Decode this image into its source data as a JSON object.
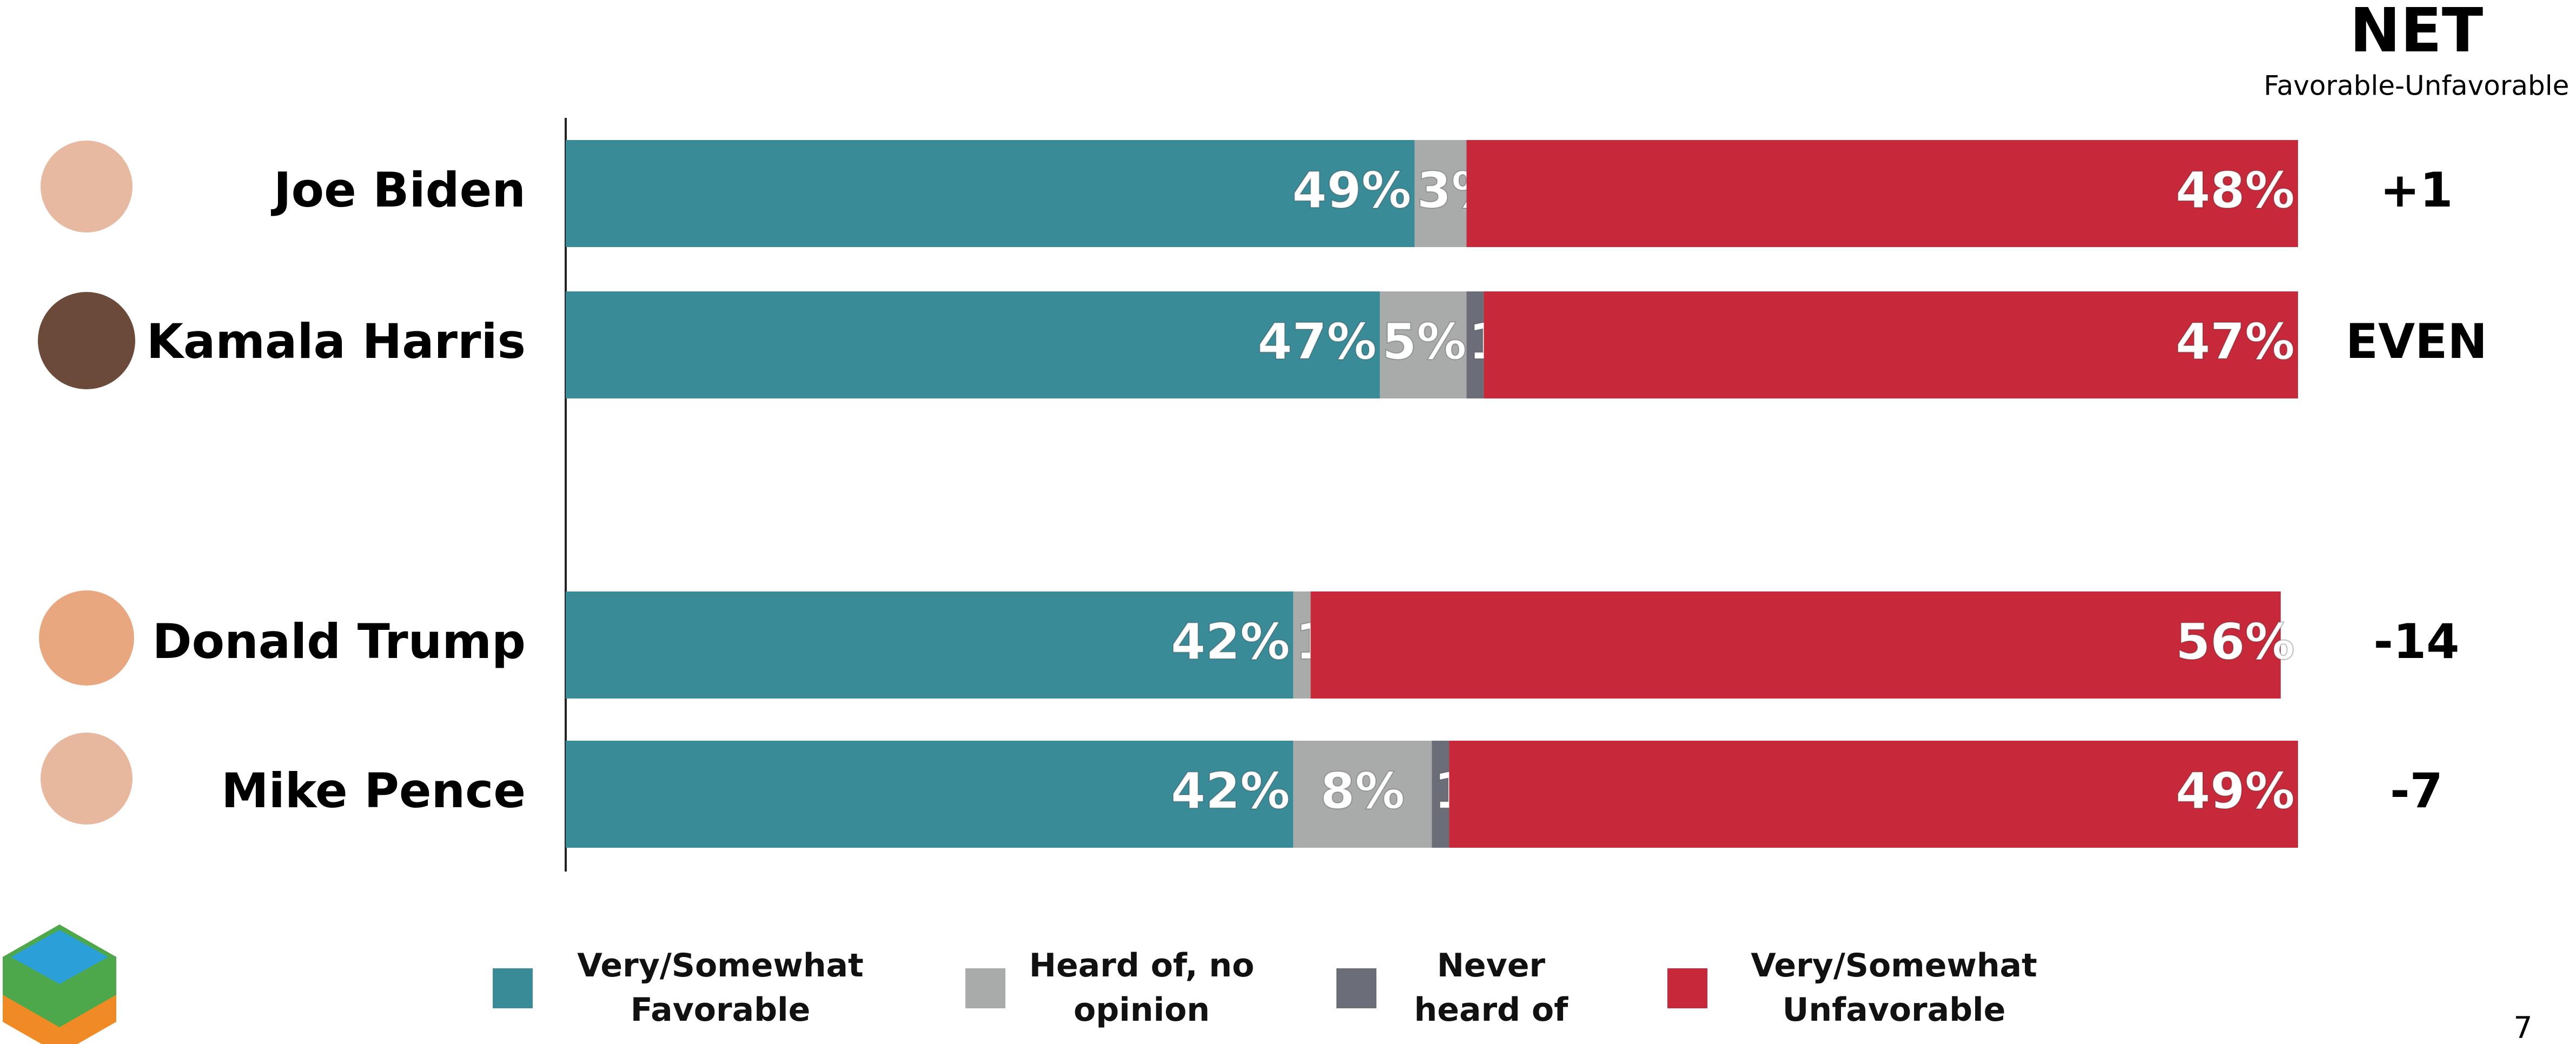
{
  "chart_data": {
    "type": "bar",
    "orientation": "horizontal",
    "stacked": true,
    "categories": [
      "Joe Biden",
      "Kamala Harris",
      "Donald Trump",
      "Mike Pence"
    ],
    "xlim": [
      0,
      100
    ],
    "series": [
      {
        "name": "Very/Somewhat Favorable",
        "color": "#3a8b98",
        "values": [
          49,
          47,
          42,
          42
        ],
        "value_labels": [
          "49%",
          "47%",
          "42%",
          "42%"
        ]
      },
      {
        "name": "Heard of, no opinion",
        "color": "#a9abab",
        "values": [
          3,
          5,
          1,
          8
        ],
        "value_labels": [
          "3%",
          "5%",
          "1%",
          "8%"
        ]
      },
      {
        "name": "Never heard of",
        "color": "#6b6e78",
        "values": [
          null,
          1,
          null,
          1
        ],
        "value_labels": [
          null,
          "1%",
          null,
          "1%"
        ]
      },
      {
        "name": "Very/Somewhat Unfavorable",
        "color": "#c8293a",
        "values": [
          48,
          47,
          56,
          49
        ],
        "value_labels": [
          "48%",
          "47%",
          "56%",
          "49%"
        ]
      }
    ],
    "net": {
      "title": "NET",
      "subtitle": "Favorable-Unfavorable",
      "labels": [
        "+1",
        "EVEN",
        "-14",
        "-7"
      ]
    }
  },
  "page_number": "7"
}
